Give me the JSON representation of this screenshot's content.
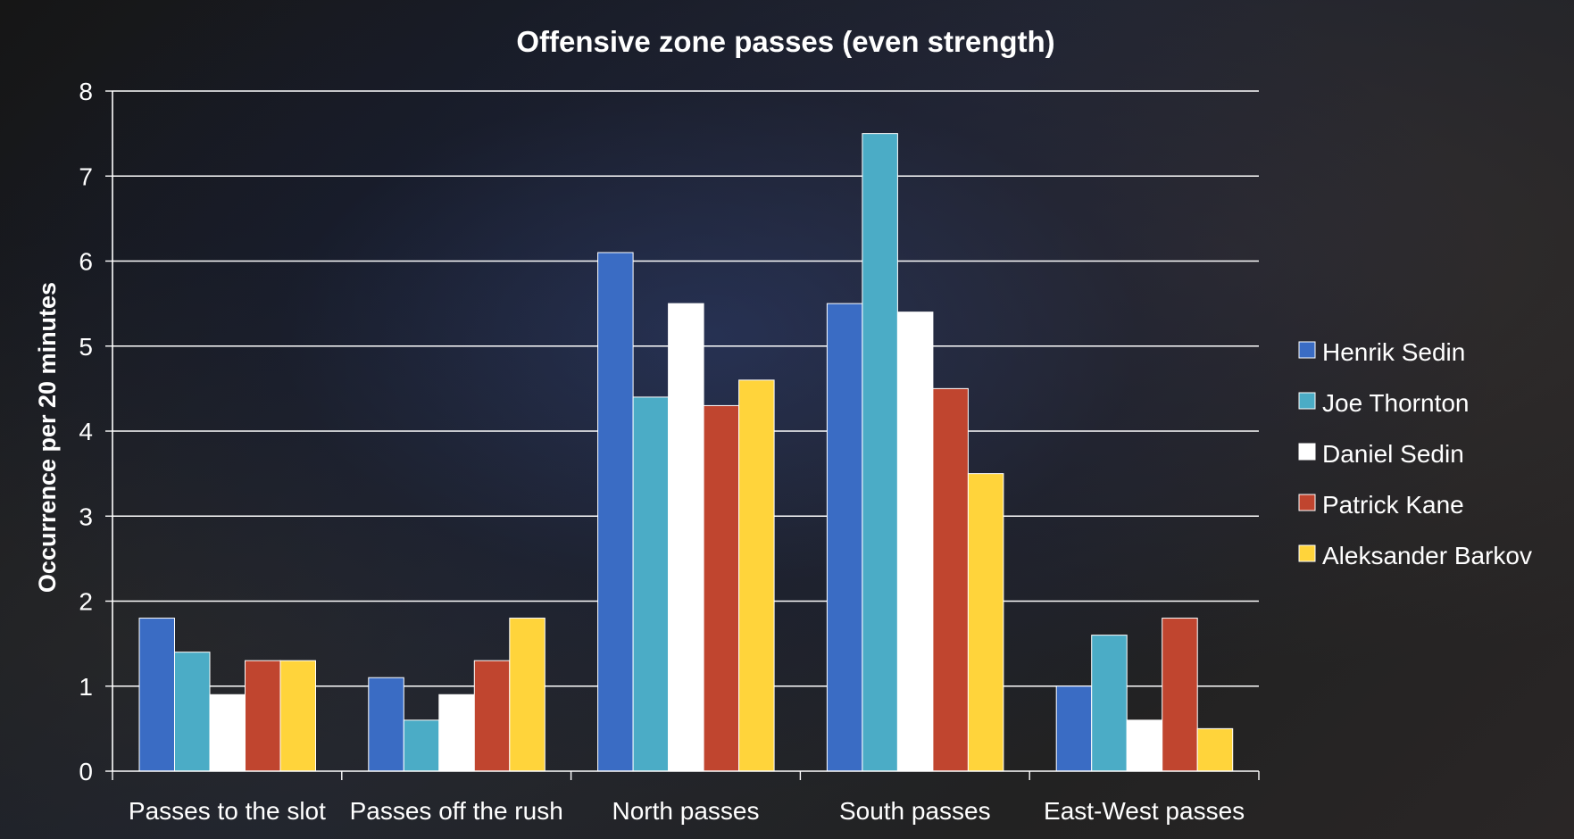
{
  "chart_data": {
    "type": "bar",
    "title": "Offensive zone passes (even strength)",
    "xlabel": "",
    "ylabel": "Occurrence per 20 minutes",
    "ylim": [
      0,
      8
    ],
    "yticks": [
      "0",
      "1",
      "2",
      "3",
      "4",
      "5",
      "6",
      "7",
      "8"
    ],
    "grid": true,
    "legend_position": "right",
    "categories": [
      "Passes to the slot",
      "Passes off the rush",
      "North passes",
      "South passes",
      "East-West passes"
    ],
    "series": [
      {
        "name": "Henrik Sedin",
        "color": "#3A6CC4",
        "values": [
          1.8,
          1.1,
          6.1,
          5.5,
          1.0
        ]
      },
      {
        "name": "Joe Thornton",
        "color": "#4BACC6",
        "values": [
          1.4,
          0.6,
          4.4,
          7.5,
          1.6
        ]
      },
      {
        "name": "Daniel Sedin",
        "color": "#FFFFFF",
        "values": [
          0.9,
          0.9,
          5.5,
          5.4,
          0.6
        ]
      },
      {
        "name": "Patrick Kane",
        "color": "#C0452F",
        "values": [
          1.3,
          1.3,
          4.3,
          4.5,
          1.8
        ]
      },
      {
        "name": "Aleksander Barkov",
        "color": "#FFD43B",
        "values": [
          1.3,
          1.8,
          4.6,
          3.5,
          0.5
        ]
      }
    ]
  }
}
